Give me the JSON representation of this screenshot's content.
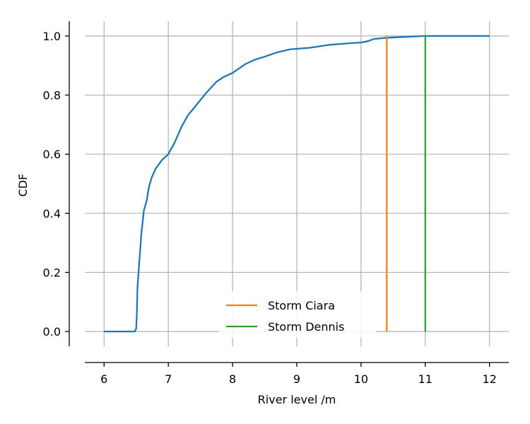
{
  "chart_data": {
    "type": "line",
    "xlabel": "River level /m",
    "ylabel": "CDF",
    "xlim": [
      5.7,
      12.3
    ],
    "ylim": [
      -0.05,
      1.05
    ],
    "x_ticks": [
      6,
      7,
      8,
      9,
      10,
      11,
      12
    ],
    "y_ticks": [
      0.0,
      0.2,
      0.4,
      0.6,
      0.8,
      1.0
    ],
    "x_tick_labels": [
      "6",
      "7",
      "8",
      "9",
      "10",
      "11",
      "12"
    ],
    "y_tick_labels": [
      "0.0",
      "0.2",
      "0.4",
      "0.6",
      "0.8",
      "1.0"
    ],
    "grid": true,
    "legend_position": "lower-center",
    "series": [
      {
        "color": "#1f77b4",
        "x": [
          6.0,
          6.48,
          6.5,
          6.51,
          6.52,
          6.55,
          6.58,
          6.62,
          6.66,
          6.7,
          6.74,
          6.8,
          6.9,
          7.0,
          7.1,
          7.2,
          7.3,
          7.45,
          7.6,
          7.75,
          7.85,
          8.0,
          8.2,
          8.35,
          8.5,
          8.7,
          8.9,
          9.2,
          9.5,
          9.8,
          10.0,
          10.1,
          10.2,
          10.4,
          10.6,
          10.8,
          11.0,
          11.5,
          12.0
        ],
        "y": [
          0.0,
          0.0,
          0.01,
          0.06,
          0.15,
          0.24,
          0.33,
          0.41,
          0.44,
          0.49,
          0.52,
          0.55,
          0.58,
          0.6,
          0.64,
          0.69,
          0.73,
          0.77,
          0.81,
          0.845,
          0.86,
          0.875,
          0.905,
          0.92,
          0.93,
          0.945,
          0.955,
          0.96,
          0.97,
          0.975,
          0.978,
          0.982,
          0.99,
          0.994,
          0.996,
          0.998,
          1.0,
          1.0,
          1.0
        ]
      }
    ],
    "markers": [
      {
        "name": "Storm Ciara",
        "x": 10.4,
        "y_range": [
          0.0,
          1.0
        ],
        "color": "#ff7f0e"
      },
      {
        "name": "Storm Dennis",
        "x": 11.0,
        "y_range": [
          0.0,
          1.0
        ],
        "color": "#2ca02c"
      }
    ]
  }
}
